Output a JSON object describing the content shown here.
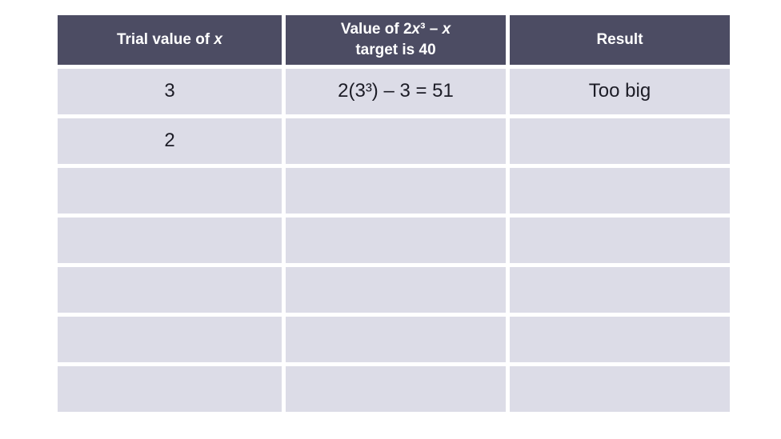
{
  "colors": {
    "header_bg": "#4c4c63",
    "header_text": "#ffffff",
    "cell_bg": "#dcdce7",
    "body_text": "#1c1c26",
    "gutter": "#ffffff"
  },
  "table": {
    "header": {
      "col1_prefix": "Trial value of ",
      "col1_var": "x",
      "col2_line1_prefix": "Value of 2",
      "col2_var1": "x",
      "col2_line1_mid": "³ – ",
      "col2_var2": "x",
      "col2_line2": "target is 40",
      "col3": "Result"
    },
    "rows": [
      {
        "c1": "3",
        "c2": "2(3³) – 3 = 51",
        "c3": "Too big"
      },
      {
        "c1": "2",
        "c2": "",
        "c3": ""
      },
      {
        "c1": "",
        "c2": "",
        "c3": ""
      },
      {
        "c1": "",
        "c2": "",
        "c3": ""
      },
      {
        "c1": "",
        "c2": "",
        "c3": ""
      },
      {
        "c1": "",
        "c2": "",
        "c3": ""
      },
      {
        "c1": "",
        "c2": "",
        "c3": ""
      }
    ]
  },
  "chart_data": {
    "type": "table",
    "columns": [
      "Trial value of x",
      "Value of 2x³ – x (target is 40)",
      "Result"
    ],
    "rows": [
      [
        "3",
        "2(3³) – 3 = 51",
        "Too big"
      ],
      [
        "2",
        "",
        ""
      ],
      [
        "",
        "",
        ""
      ],
      [
        "",
        "",
        ""
      ],
      [
        "",
        "",
        ""
      ],
      [
        "",
        "",
        ""
      ],
      [
        "",
        "",
        ""
      ]
    ]
  }
}
